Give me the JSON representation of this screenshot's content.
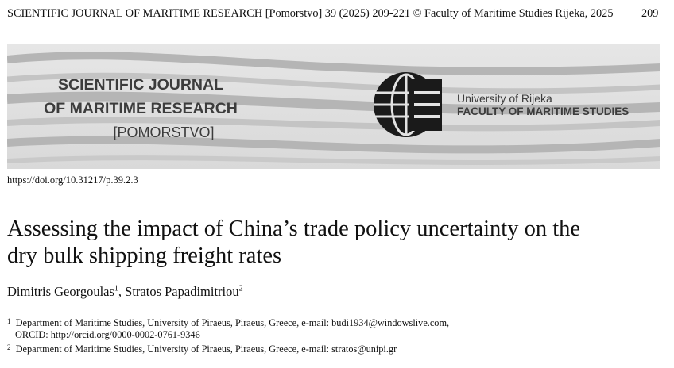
{
  "running_header": {
    "text": "SCIENTIFIC JOURNAL OF MARITIME RESEARCH [Pomorstvo] 39 (2025) 209-221 © Faculty of Maritime Studies Rijeka, 2025",
    "page": "209"
  },
  "banner": {
    "journal_lines": [
      "SCIENTIFIC JOURNAL",
      "OF MARITIME RESEARCH",
      "[POMORSTVO]"
    ],
    "university": "University of Rijeka",
    "faculty": "FACULTY OF MARITIME STUDIES"
  },
  "doi": "https://doi.org/10.31217/p.39.2.3",
  "title_lines": [
    "Assessing the impact of China’s trade policy uncertainty on the",
    "dry bulk shipping freight rates"
  ],
  "authors": [
    {
      "name": "Dimitris Georgoulas",
      "sup": "1"
    },
    {
      "name": "Stratos Papadimitriou",
      "sup": "2"
    }
  ],
  "author_separator": ",",
  "affiliations": [
    {
      "marker": "1",
      "lines": [
        "Department of Maritime Studies, University of Piraeus, Piraeus, Greece, e-mail: budi1934@windowslive.com,",
        "ORCID: http://orcid.org/0000-0002-0761-9346"
      ]
    },
    {
      "marker": "2",
      "lines": [
        "Department of Maritime Studies, University of Piraeus, Piraeus, Greece, e-mail: stratos@unipi.gr"
      ]
    }
  ]
}
